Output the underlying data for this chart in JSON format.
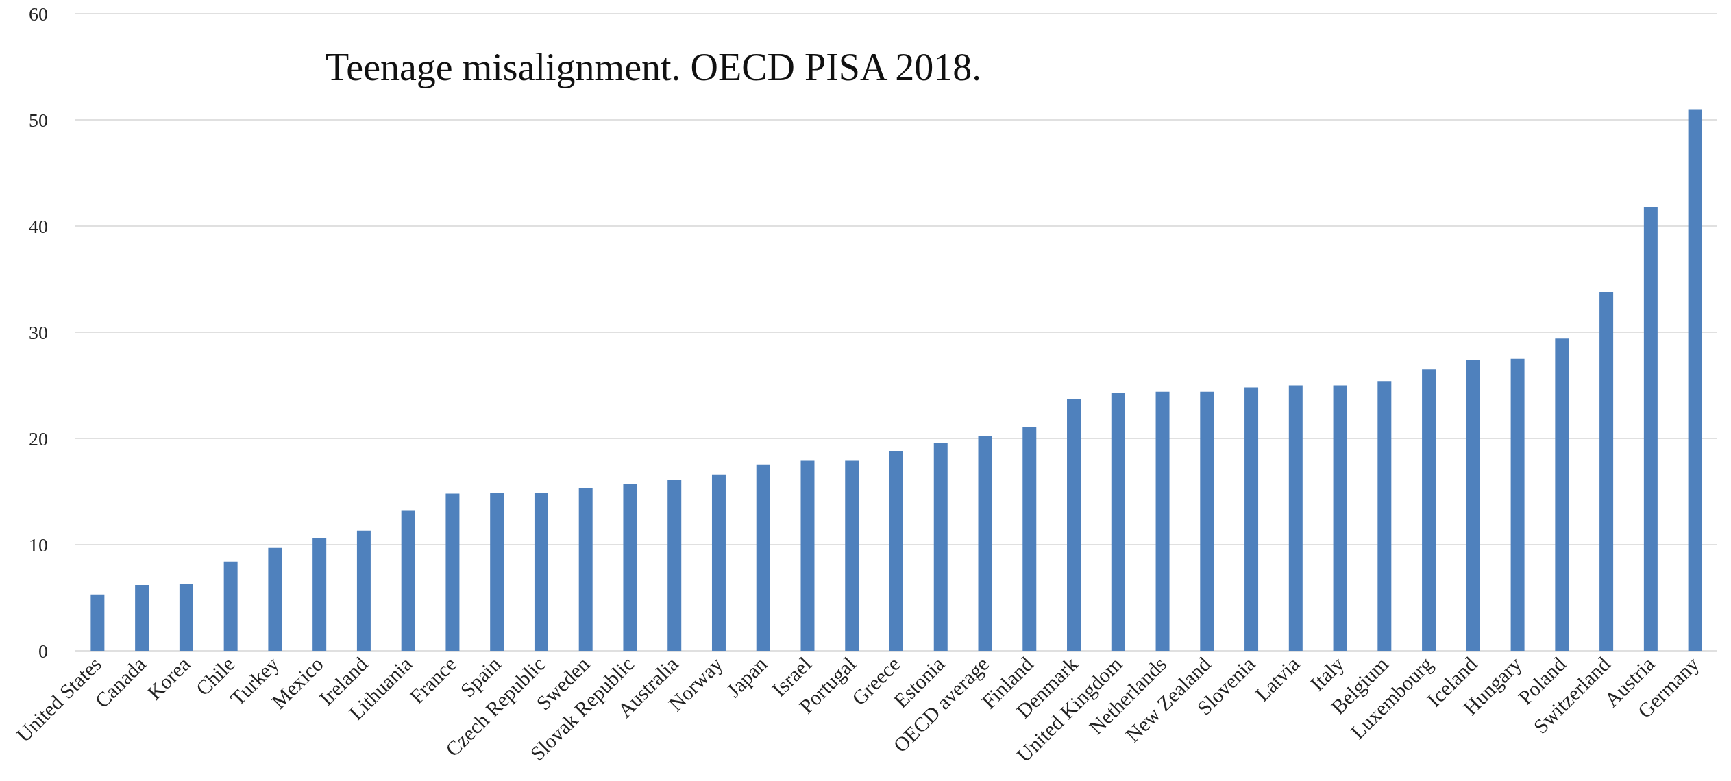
{
  "chart_data": {
    "type": "bar",
    "title": "Teenage misalignment. OECD PISA 2018.",
    "categories": [
      "United States",
      "Canada",
      "Korea",
      "Chile",
      "Turkey",
      "Mexico",
      "Ireland",
      "Lithuania",
      "France",
      "Spain",
      "Czech Republic",
      "Sweden",
      "Slovak Republic",
      "Australia",
      "Norway",
      "Japan",
      "Israel",
      "Portugal",
      "Greece",
      "Estonia",
      "OECD average",
      "Finland",
      "Denmark",
      "United Kingdom",
      "Netherlands",
      "New Zealand",
      "Slovenia",
      "Latvia",
      "Italy",
      "Belgium",
      "Luxembourg",
      "Iceland",
      "Hungary",
      "Poland",
      "Switzerland",
      "Austria",
      "Germany"
    ],
    "values": [
      5.3,
      6.2,
      6.3,
      8.4,
      9.7,
      10.6,
      11.3,
      13.2,
      14.8,
      14.9,
      14.9,
      15.3,
      15.7,
      16.1,
      16.6,
      17.5,
      17.9,
      17.9,
      18.8,
      19.6,
      20.2,
      21.1,
      23.7,
      24.3,
      24.4,
      24.4,
      24.8,
      25.0,
      25.0,
      25.4,
      26.5,
      27.4,
      27.5,
      29.4,
      33.8,
      41.8,
      51.0
    ],
    "color": "#4f81bd",
    "ylim": [
      0,
      60
    ],
    "yticks": [
      0,
      10,
      20,
      30,
      40,
      50,
      60
    ],
    "grid": "y"
  }
}
